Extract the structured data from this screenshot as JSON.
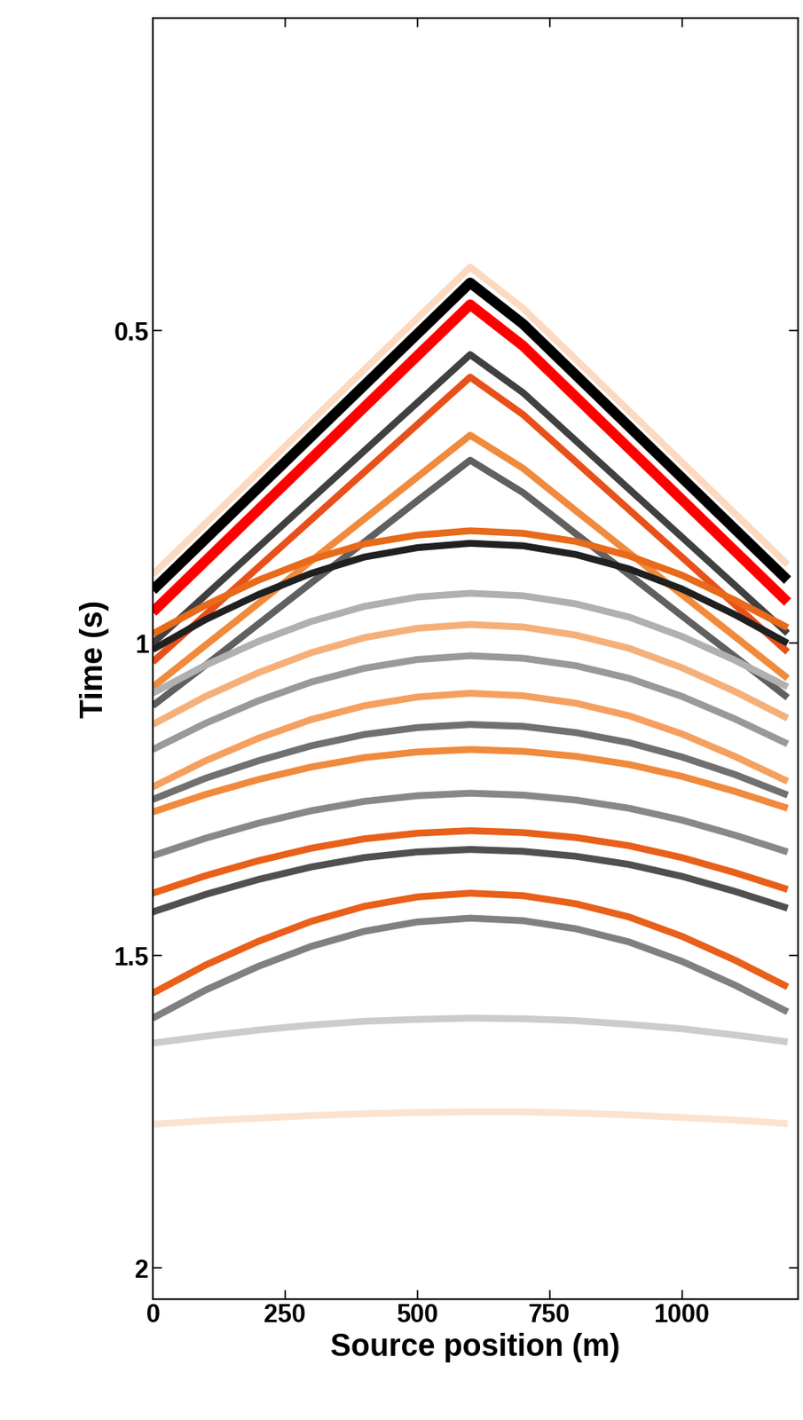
{
  "chart_data": {
    "type": "line",
    "x_label": "Source position (m)",
    "y_label": "Time (s)",
    "x": [
      0,
      100,
      200,
      300,
      400,
      500,
      600,
      700,
      800,
      900,
      1000,
      1100,
      1200
    ],
    "series": [
      {
        "color": "#fcd9bf",
        "values": [
          0.89,
          0.808,
          0.726,
          0.644,
          0.562,
          0.48,
          0.398,
          0.464,
          0.546,
          0.628,
          0.71,
          0.792,
          0.874
        ]
      },
      {
        "color": "#000000",
        "values": [
          0.915,
          0.833,
          0.751,
          0.669,
          0.587,
          0.505,
          0.423,
          0.489,
          0.571,
          0.653,
          0.735,
          0.817,
          0.899
        ]
      },
      {
        "color": "#ff0000",
        "values": [
          0.95,
          0.868,
          0.786,
          0.704,
          0.622,
          0.54,
          0.458,
          0.524,
          0.606,
          0.688,
          0.77,
          0.852,
          0.934
        ]
      },
      {
        "color": "#404040",
        "values": [
          1.0,
          0.923,
          0.846,
          0.769,
          0.692,
          0.615,
          0.538,
          0.599,
          0.676,
          0.753,
          0.83,
          0.907,
          0.984
        ]
      },
      {
        "color": "#e8501a",
        "values": [
          1.03,
          0.954,
          0.878,
          0.802,
          0.726,
          0.65,
          0.574,
          0.634,
          0.71,
          0.786,
          0.862,
          0.938,
          1.014
        ]
      },
      {
        "color": "#f08a3c",
        "values": [
          1.07,
          1.003,
          0.936,
          0.868,
          0.801,
          0.734,
          0.667,
          0.72,
          0.788,
          0.855,
          0.922,
          0.989,
          1.056
        ]
      },
      {
        "color": "#606060",
        "values": [
          1.1,
          1.035,
          0.969,
          0.903,
          0.838,
          0.772,
          0.707,
          0.759,
          0.825,
          0.89,
          0.956,
          1.021,
          1.087
        ]
      },
      {
        "color": "#e86a1a",
        "values": [
          0.985,
          0.939,
          0.899,
          0.866,
          0.841,
          0.827,
          0.82,
          0.824,
          0.837,
          0.86,
          0.891,
          0.931,
          0.975
        ]
      },
      {
        "color": "#202020",
        "values": [
          1.01,
          0.962,
          0.922,
          0.888,
          0.862,
          0.847,
          0.84,
          0.844,
          0.858,
          0.881,
          0.913,
          0.954,
          1.0
        ]
      },
      {
        "color": "#b0b0b0",
        "values": [
          1.08,
          1.035,
          0.997,
          0.965,
          0.941,
          0.926,
          0.92,
          0.924,
          0.937,
          0.958,
          0.989,
          1.027,
          1.07
        ]
      },
      {
        "color": "#f5b07a",
        "values": [
          1.13,
          1.085,
          1.047,
          1.015,
          0.991,
          0.976,
          0.97,
          0.974,
          0.987,
          1.008,
          1.039,
          1.077,
          1.12
        ]
      },
      {
        "color": "#999999",
        "values": [
          1.17,
          1.128,
          1.092,
          1.062,
          1.04,
          1.026,
          1.02,
          1.024,
          1.036,
          1.056,
          1.085,
          1.121,
          1.161
        ]
      },
      {
        "color": "#f5a060",
        "values": [
          1.23,
          1.188,
          1.152,
          1.122,
          1.1,
          1.086,
          1.08,
          1.084,
          1.096,
          1.116,
          1.145,
          1.181,
          1.221
        ]
      },
      {
        "color": "#707070",
        "values": [
          1.25,
          1.216,
          1.188,
          1.164,
          1.146,
          1.135,
          1.13,
          1.133,
          1.143,
          1.159,
          1.182,
          1.21,
          1.243
        ]
      },
      {
        "color": "#f08a3c",
        "values": [
          1.27,
          1.242,
          1.218,
          1.198,
          1.183,
          1.174,
          1.17,
          1.173,
          1.181,
          1.194,
          1.213,
          1.237,
          1.264
        ]
      },
      {
        "color": "#888888",
        "values": [
          1.34,
          1.312,
          1.288,
          1.268,
          1.253,
          1.244,
          1.24,
          1.243,
          1.251,
          1.264,
          1.283,
          1.307,
          1.334
        ]
      },
      {
        "color": "#e8601a",
        "values": [
          1.4,
          1.372,
          1.348,
          1.328,
          1.313,
          1.304,
          1.3,
          1.303,
          1.311,
          1.324,
          1.343,
          1.367,
          1.394
        ]
      },
      {
        "color": "#505050",
        "values": [
          1.43,
          1.402,
          1.378,
          1.358,
          1.343,
          1.334,
          1.33,
          1.333,
          1.341,
          1.354,
          1.373,
          1.397,
          1.424
        ]
      },
      {
        "color": "#e8601a",
        "values": [
          1.56,
          1.515,
          1.477,
          1.445,
          1.421,
          1.406,
          1.4,
          1.404,
          1.417,
          1.438,
          1.469,
          1.507,
          1.55
        ]
      },
      {
        "color": "#808080",
        "values": [
          1.6,
          1.555,
          1.517,
          1.485,
          1.461,
          1.446,
          1.44,
          1.444,
          1.457,
          1.478,
          1.509,
          1.547,
          1.59
        ]
      },
      {
        "color": "#cccccc",
        "values": [
          1.64,
          1.629,
          1.619,
          1.611,
          1.605,
          1.602,
          1.6,
          1.601,
          1.604,
          1.61,
          1.617,
          1.627,
          1.638
        ]
      },
      {
        "color": "#fbe3d0",
        "values": [
          1.77,
          1.764,
          1.76,
          1.756,
          1.753,
          1.751,
          1.75,
          1.75,
          1.752,
          1.755,
          1.759,
          1.763,
          1.769
        ]
      }
    ],
    "xlim": [
      0,
      1220
    ],
    "ylim": [
      2.05,
      0
    ],
    "xticks": [
      0,
      250,
      500,
      750,
      1000
    ],
    "yticks": [
      0.5,
      1,
      1.5,
      2
    ]
  }
}
